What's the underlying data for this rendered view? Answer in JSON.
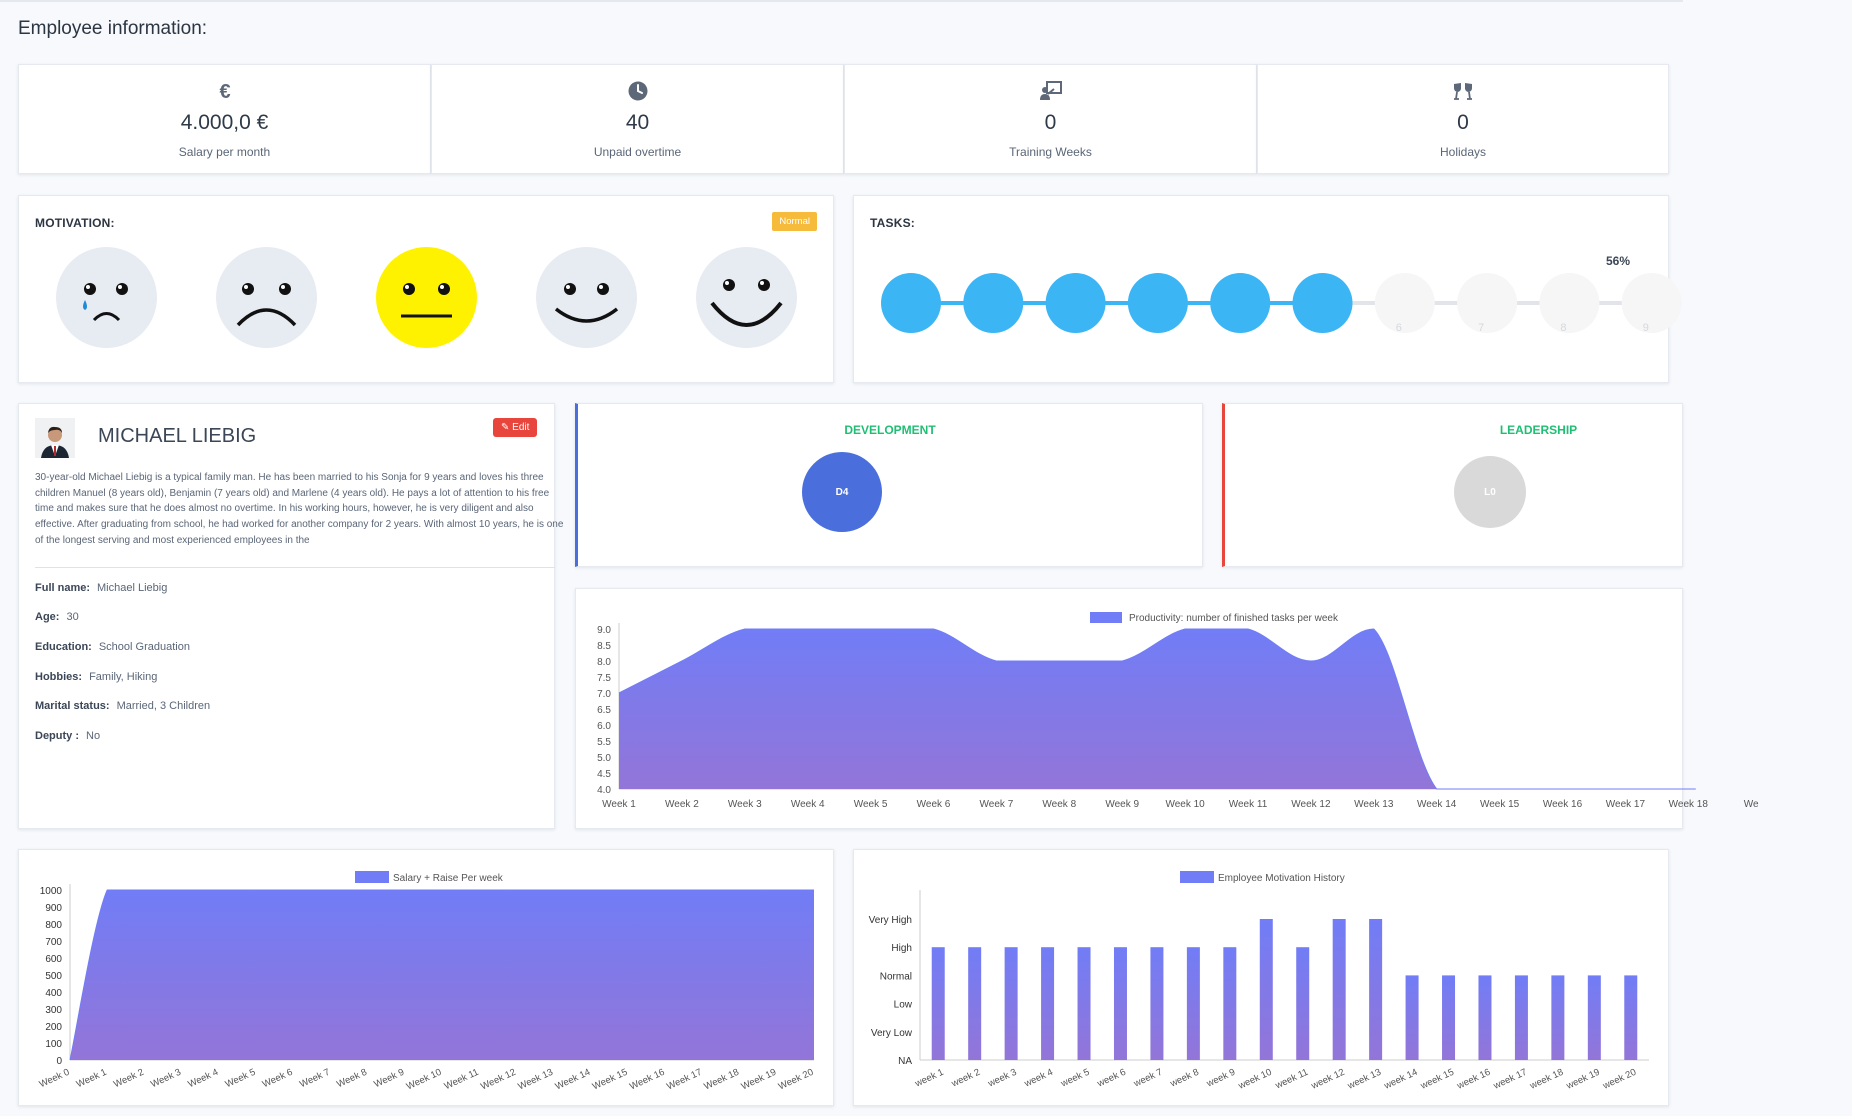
{
  "page": {
    "title": "Employee information:"
  },
  "stats": [
    {
      "icon": "euro-icon",
      "value": "4.000,0 €",
      "label": "Salary per month"
    },
    {
      "icon": "clock-icon",
      "value": "40",
      "label": "Unpaid overtime"
    },
    {
      "icon": "training-icon",
      "value": "0",
      "label": "Training Weeks"
    },
    {
      "icon": "cheers-icon",
      "value": "0",
      "label": "Holidays"
    }
  ],
  "motivation": {
    "title": "MOTIVATION:",
    "badge": "Normal",
    "selected_level": "Normal",
    "faces": [
      "very-sad-face-icon",
      "sad-face-icon",
      "neutral-face-icon",
      "smile-face-icon",
      "big-smile-face-icon"
    ],
    "selected_color": "#fff200"
  },
  "tasks": {
    "title": "TASKS:",
    "percent_label": "56%",
    "completed": 6,
    "total": 10,
    "steps": [
      "0",
      "1",
      "2",
      "3",
      "4",
      "5",
      "6",
      "7",
      "8",
      "9"
    ]
  },
  "profile": {
    "name": "MICHAEL LIEBIG",
    "edit_label": "Edit",
    "bio": "30-year-old Michael Liebig is a typical family man. He has been married to his Sonja for 9 years and loves his three children Manuel (8 years old), Benjamin (7 years old) and Marlene (4 years old). He pays a lot of attention to his free time and makes sure that he does almost no overtime. In his working hours, however, he is very diligent and also effective. After graduating from school, he had worked for another company for 2 years. With almost 10 years, he is one of the longest serving and most experienced employees in the",
    "fields": [
      {
        "label": "Full name:",
        "value": "Michael Liebig"
      },
      {
        "label": "Age:",
        "value": "30"
      },
      {
        "label": "Education:",
        "value": "School Graduation"
      },
      {
        "label": "Hobbies:",
        "value": "Family, Hiking"
      },
      {
        "label": "Marital status:",
        "value": "Married, 3 Children"
      },
      {
        "label": "Deputy :",
        "value": "No"
      }
    ]
  },
  "development": {
    "title": "DEVELOPMENT",
    "level": "D4",
    "color": "#4a6fdc",
    "title_color": "#1fbf73"
  },
  "leadership": {
    "title": "LEADERSHIP",
    "level": "L0",
    "color": "#d9d9d9",
    "title_color": "#1fbf73",
    "border_color": "#e8453c"
  },
  "colors": {
    "chart_fill_top": "#717df6",
    "chart_fill_bottom": "#9375d8",
    "task_blue": "#3cb5f5"
  },
  "chart_data": [
    {
      "type": "area",
      "legend": "Productivity: number of finished tasks per week",
      "categories": [
        "Week 1",
        "Week 2",
        "Week 3",
        "Week 4",
        "Week 5",
        "Week 6",
        "Week 7",
        "Week 8",
        "Week 9",
        "Week 10",
        "Week 11",
        "Week 12",
        "Week 13",
        "Week 14",
        "Week 15",
        "Week 16",
        "Week 17",
        "Week 18"
      ],
      "values": [
        7,
        8,
        9,
        9,
        9,
        9,
        8,
        8,
        8,
        9,
        9,
        8,
        9,
        4,
        4,
        4,
        4,
        4
      ],
      "ylim": [
        4,
        9
      ],
      "yticks": [
        "4.0",
        "4.5",
        "5.0",
        "5.5",
        "6.0",
        "6.5",
        "7.0",
        "7.5",
        "8.0",
        "8.5",
        "9.0"
      ],
      "last_tick_visible": "We",
      "grid": false,
      "legend_position": "top"
    },
    {
      "type": "area",
      "legend": "Salary + Raise Per week",
      "categories": [
        "Week 0",
        "Week 1",
        "Week 2",
        "Week 3",
        "Week 4",
        "Week 5",
        "Week 6",
        "Week 7",
        "Week 8",
        "Week 9",
        "Week 10",
        "Week 11",
        "Week 12",
        "Week 13",
        "Week 14",
        "Week 15",
        "Week 16",
        "Week 17",
        "Week 18",
        "Week 19",
        "Week 20"
      ],
      "values": [
        0,
        1000,
        1000,
        1000,
        1000,
        1000,
        1000,
        1000,
        1000,
        1000,
        1000,
        1000,
        1000,
        1000,
        1000,
        1000,
        1000,
        1000,
        1000,
        1000,
        1000
      ],
      "ylim": [
        0,
        1000
      ],
      "yticks": [
        "0",
        "100",
        "200",
        "300",
        "400",
        "500",
        "600",
        "700",
        "800",
        "900",
        "1000"
      ],
      "grid": false,
      "legend_position": "top"
    },
    {
      "type": "bar",
      "legend": "Employee Motivation History",
      "categories": [
        "week 1",
        "week 2",
        "week 3",
        "week 4",
        "week 5",
        "week 6",
        "week 7",
        "week 8",
        "week 9",
        "week 10",
        "week 11",
        "week 12",
        "week 13",
        "week 14",
        "week 15",
        "week 16",
        "week 17",
        "week 18",
        "week 19",
        "week 20"
      ],
      "values": [
        4,
        4,
        4,
        4,
        4,
        4,
        4,
        4,
        4,
        5,
        4,
        5,
        5,
        3,
        3,
        3,
        3,
        3,
        3,
        3
      ],
      "ylim": [
        0,
        5
      ],
      "yticks": [
        "NA",
        "Very Low",
        "Low",
        "Normal",
        "High",
        "Very High"
      ],
      "grid": false,
      "legend_position": "top"
    }
  ]
}
